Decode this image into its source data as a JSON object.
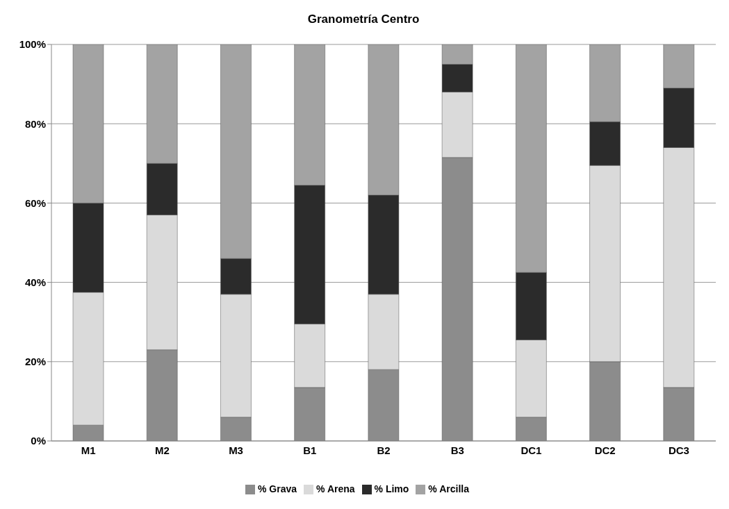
{
  "chart_data": {
    "type": "bar",
    "title": "Granometría Centro",
    "stacked": true,
    "categories": [
      "M1",
      "M2",
      "M3",
      "B1",
      "B2",
      "B3",
      "DC1",
      "DC2",
      "DC3"
    ],
    "series": [
      {
        "name": "% Grava",
        "color": "#8c8c8c",
        "values": [
          4,
          23,
          6,
          13.5,
          18,
          71.5,
          6,
          20,
          13.5
        ]
      },
      {
        "name": "% Arena",
        "color": "#dadada",
        "values": [
          33.5,
          34,
          31,
          16,
          19,
          16.5,
          19.5,
          49.5,
          60.5
        ]
      },
      {
        "name": "% Limo",
        "color": "#2b2b2b",
        "values": [
          22.5,
          13,
          9,
          35,
          25,
          7,
          17,
          11,
          15
        ]
      },
      {
        "name": "% Arcilla",
        "color": "#a3a3a3",
        "values": [
          40,
          30,
          54,
          35.5,
          38,
          5,
          57.5,
          19.5,
          11
        ]
      }
    ],
    "ylim": [
      0,
      100
    ],
    "yticks": [
      {
        "value": 0,
        "label": "0%"
      },
      {
        "value": 20,
        "label": "20%"
      },
      {
        "value": 40,
        "label": "40%"
      },
      {
        "value": 60,
        "label": "60%"
      },
      {
        "value": 80,
        "label": "80%"
      },
      {
        "value": 100,
        "label": "100%"
      }
    ],
    "grid": "y",
    "legend": "bottom"
  }
}
